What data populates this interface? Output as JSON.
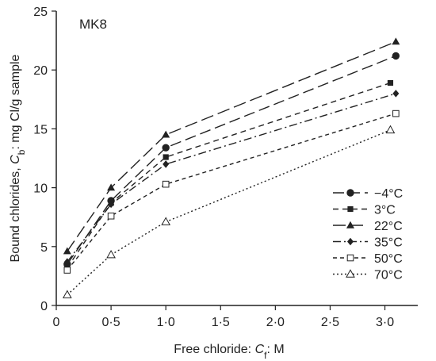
{
  "chart_data": {
    "type": "line",
    "panel_label": "MK8",
    "xlabel": {
      "prefix": "Free chloride: ",
      "var": "C",
      "sub": "f",
      "suffix": ": M"
    },
    "ylabel": {
      "prefix": "Bound chlorides, ",
      "var": "C",
      "sub": "b",
      "suffix": ": mg Cl/g sample"
    },
    "xlim": [
      0,
      3.3
    ],
    "ylim": [
      0,
      25
    ],
    "xticks": [
      {
        "value": 0,
        "label": "0"
      },
      {
        "value": 0.5,
        "label": "0·5"
      },
      {
        "value": 1.0,
        "label": "1·0"
      },
      {
        "value": 1.5,
        "label": "1·5"
      },
      {
        "value": 2.0,
        "label": "2·0"
      },
      {
        "value": 2.5,
        "label": "2·5"
      },
      {
        "value": 3.0,
        "label": "3·0"
      }
    ],
    "yticks": [
      {
        "value": 0,
        "label": "0"
      },
      {
        "value": 5,
        "label": "5"
      },
      {
        "value": 10,
        "label": "10"
      },
      {
        "value": 15,
        "label": "15"
      },
      {
        "value": 20,
        "label": "20"
      },
      {
        "value": 25,
        "label": "25"
      }
    ],
    "grid": false,
    "legend_position": "right-middle",
    "series": [
      {
        "name": "−4°C",
        "marker": "circle",
        "dash": "14,6",
        "x": [
          0.1,
          0.5,
          1.0,
          3.1
        ],
        "y": [
          3.5,
          8.9,
          13.4,
          21.2
        ]
      },
      {
        "name": "3°C",
        "marker": "square",
        "dash": "7,5",
        "x": [
          0.1,
          0.5,
          1.0,
          3.05
        ],
        "y": [
          3.2,
          8.7,
          12.6,
          18.9
        ]
      },
      {
        "name": "22°C",
        "marker": "triangle",
        "dash": "16,6",
        "x": [
          0.1,
          0.5,
          1.0,
          3.1
        ],
        "y": [
          4.6,
          10.0,
          14.5,
          22.4
        ]
      },
      {
        "name": "35°C",
        "marker": "diamond",
        "dash": "10,4,2,4",
        "x": [
          0.1,
          0.5,
          1.0,
          3.1
        ],
        "y": [
          3.7,
          8.6,
          12.0,
          18.0
        ]
      },
      {
        "name": "50°C",
        "marker": "square-open",
        "dash": "5,4",
        "x": [
          0.1,
          0.5,
          1.0,
          3.1
        ],
        "y": [
          3.0,
          7.6,
          10.3,
          16.3
        ]
      },
      {
        "name": "70°C",
        "marker": "triangle-open",
        "dash": "2,3",
        "x": [
          0.1,
          0.5,
          1.0,
          3.05
        ],
        "y": [
          0.9,
          4.3,
          7.1,
          14.9
        ]
      }
    ]
  }
}
